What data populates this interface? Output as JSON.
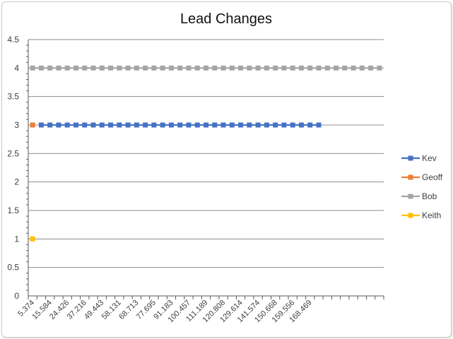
{
  "chart_data": {
    "type": "line",
    "title": "Lead Changes",
    "xlabel": "",
    "ylabel": "",
    "ylim": [
      0,
      4.5
    ],
    "yticks": [
      "0",
      "0.5",
      "1",
      "1.5",
      "2",
      "2.5",
      "3",
      "3.5",
      "4",
      "4.5"
    ],
    "x_tick_labels": [
      "5.374",
      "15.584",
      "24.426",
      "37.216",
      "49.443",
      "58.131",
      "68.713",
      "77.695",
      "91.183",
      "100.457",
      "111.189",
      "120.808",
      "129.614",
      "141.574",
      "150.668",
      "159.556",
      "168.469"
    ],
    "category_count": 41,
    "grid": "horizontal",
    "legend": "right",
    "series": [
      {
        "name": "Kev",
        "color": "#4472C4",
        "start": 1,
        "end": 33,
        "value": 3
      },
      {
        "name": "Geoff",
        "color": "#ED7D31",
        "start": 0,
        "end": 0,
        "value": 3
      },
      {
        "name": "Bob",
        "color": "#A5A5A5",
        "start": 0,
        "end": 40,
        "value": 4
      },
      {
        "name": "Keith",
        "color": "#FFC000",
        "start": 0,
        "end": 0,
        "value": 1
      }
    ]
  }
}
